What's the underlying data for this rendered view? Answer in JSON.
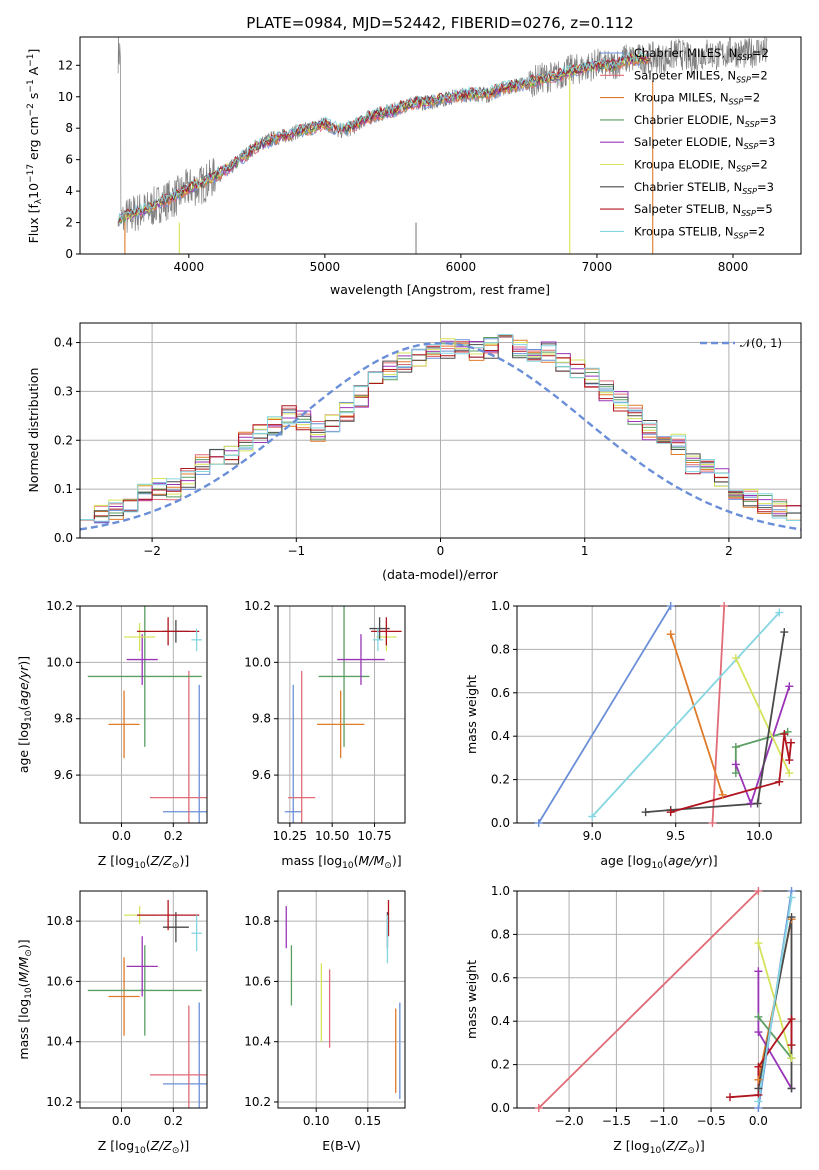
{
  "title": "PLATE=0984, MJD=52442, FIBERID=0276, z=0.112",
  "legend": [
    {
      "label": "Chabrier MILES, N",
      "sub": "SSP",
      "tail": "=2"
    },
    {
      "label": "Salpeter MILES, N",
      "sub": "SSP",
      "tail": "=2"
    },
    {
      "label": "Kroupa MILES, N",
      "sub": "SSP",
      "tail": "=2"
    },
    {
      "label": "Chabrier ELODIE, N",
      "sub": "SSP",
      "tail": "=3"
    },
    {
      "label": "Salpeter ELODIE, N",
      "sub": "SSP",
      "tail": "=3"
    },
    {
      "label": "Kroupa ELODIE, N",
      "sub": "SSP",
      "tail": "=2"
    },
    {
      "label": "Chabrier STELIB, N",
      "sub": "SSP",
      "tail": "=3"
    },
    {
      "label": "Salpeter STELIB, N",
      "sub": "SSP",
      "tail": "=5"
    },
    {
      "label": "Kroupa STELIB, N",
      "sub": "SSP",
      "tail": "=2"
    }
  ],
  "colors": [
    "#6a8fd8",
    "#e06c77",
    "#e07b2a",
    "#5a9e62",
    "#9a35b8",
    "#d6e35a",
    "#4a4a4a",
    "#b0141e",
    "#86d6e2"
  ],
  "chart_data": [
    {
      "type": "line",
      "title": "PLATE=0984, MJD=52442, FIBERID=0276, z=0.112",
      "xlabel": "wavelength [Angstrom, rest frame]",
      "ylabel_parts": [
        "Flux [f",
        "λ",
        "10",
        "−17",
        " erg cm",
        "−2",
        " s",
        "−1",
        " A",
        "−1",
        "]"
      ],
      "xlim": [
        3200,
        8500
      ],
      "ylim": [
        0,
        13.8
      ],
      "xticks": [
        4000,
        5000,
        6000,
        7000,
        8000
      ],
      "yticks": [
        0,
        2,
        4,
        6,
        8,
        10,
        12
      ],
      "grid": false,
      "legend_position": "right",
      "data_gray": [
        [
          3500,
          2.1
        ],
        [
          3600,
          2.6
        ],
        [
          3700,
          2.8
        ],
        [
          3800,
          3.3
        ],
        [
          3900,
          3.6
        ],
        [
          4000,
          4.2
        ],
        [
          4100,
          4.4
        ],
        [
          4200,
          5.0
        ],
        [
          4300,
          5.4
        ],
        [
          4400,
          6.2
        ],
        [
          4500,
          6.9
        ],
        [
          4600,
          7.3
        ],
        [
          4700,
          7.5
        ],
        [
          4800,
          7.8
        ],
        [
          4900,
          8.0
        ],
        [
          5000,
          8.3
        ],
        [
          5100,
          7.8
        ],
        [
          5200,
          8.0
        ],
        [
          5300,
          8.6
        ],
        [
          5400,
          8.9
        ],
        [
          5500,
          9.1
        ],
        [
          5600,
          9.5
        ],
        [
          5700,
          9.6
        ],
        [
          5800,
          9.7
        ],
        [
          5900,
          9.9
        ],
        [
          6000,
          10.1
        ],
        [
          6100,
          10.2
        ],
        [
          6200,
          10.1
        ],
        [
          6300,
          10.5
        ],
        [
          6400,
          10.7
        ],
        [
          6500,
          10.9
        ],
        [
          6600,
          11.2
        ],
        [
          6700,
          11.3
        ],
        [
          6800,
          11.7
        ],
        [
          6900,
          11.8
        ],
        [
          7000,
          12.1
        ],
        [
          7100,
          11.9
        ],
        [
          7200,
          12.4
        ],
        [
          7300,
          12.4
        ],
        [
          7400,
          12.5
        ],
        [
          7500,
          12.4
        ],
        [
          7600,
          12.8
        ],
        [
          7700,
          12.3
        ],
        [
          7800,
          12.8
        ],
        [
          7900,
          12.6
        ],
        [
          8000,
          12.9
        ],
        [
          8100,
          12.7
        ],
        [
          8200,
          13.0
        ],
        [
          8250,
          12.8
        ]
      ],
      "model": [
        [
          3480,
          2.2
        ],
        [
          3600,
          2.6
        ],
        [
          3700,
          2.9
        ],
        [
          3800,
          3.3
        ],
        [
          3900,
          3.7
        ],
        [
          4000,
          4.2
        ],
        [
          4100,
          4.5
        ],
        [
          4200,
          5.0
        ],
        [
          4300,
          5.5
        ],
        [
          4400,
          6.2
        ],
        [
          4500,
          6.8
        ],
        [
          4600,
          7.2
        ],
        [
          4700,
          7.5
        ],
        [
          4800,
          7.8
        ],
        [
          4900,
          8.0
        ],
        [
          5000,
          8.3
        ],
        [
          5100,
          7.9
        ],
        [
          5200,
          8.1
        ],
        [
          5300,
          8.6
        ],
        [
          5400,
          8.9
        ],
        [
          5500,
          9.1
        ],
        [
          5600,
          9.5
        ],
        [
          5700,
          9.6
        ],
        [
          5800,
          9.8
        ],
        [
          5900,
          9.9
        ],
        [
          6000,
          10.1
        ],
        [
          6100,
          10.2
        ],
        [
          6200,
          10.2
        ],
        [
          6300,
          10.5
        ],
        [
          6400,
          10.7
        ],
        [
          6500,
          10.9
        ],
        [
          6600,
          11.1
        ],
        [
          6700,
          11.3
        ],
        [
          6800,
          11.6
        ],
        [
          6900,
          11.8
        ],
        [
          7000,
          12.0
        ],
        [
          7100,
          11.9
        ],
        [
          7200,
          12.3
        ],
        [
          7300,
          12.4
        ],
        [
          7400,
          12.5
        ]
      ]
    },
    {
      "type": "histogram",
      "xlabel": "(data-model)/error",
      "ylabel": "Normed distribution",
      "xlim": [
        -2.5,
        2.5
      ],
      "ylim": [
        0,
        0.44
      ],
      "xticks": [
        -2,
        -1,
        0,
        1,
        2
      ],
      "yticks": [
        0.0,
        0.1,
        0.2,
        0.3,
        0.4
      ],
      "grid": true,
      "legend": "𝒩(0, 1)",
      "legend_position": "top-right",
      "bin_width": 0.1,
      "base": [
        0.06,
        0.05,
        0.06,
        0.07,
        0.09,
        0.1,
        0.1,
        0.12,
        0.15,
        0.16,
        0.17,
        0.2,
        0.21,
        0.23,
        0.25,
        0.24,
        0.22,
        0.23,
        0.26,
        0.29,
        0.32,
        0.34,
        0.36,
        0.37,
        0.38,
        0.39,
        0.39,
        0.38,
        0.39,
        0.4,
        0.39,
        0.38,
        0.38,
        0.36,
        0.35,
        0.33,
        0.3,
        0.28,
        0.25,
        0.22,
        0.2,
        0.19,
        0.15,
        0.14,
        0.12,
        0.09,
        0.08,
        0.07,
        0.06,
        0.05
      ]
    },
    {
      "type": "errorbar",
      "xlabel": "Z [log10(Z/Z⊙)]",
      "ylabel": "age [log10(age/yr)]",
      "xlim": [
        -0.16,
        0.33
      ],
      "ylim": [
        9.43,
        10.2
      ],
      "xticks": [
        0.0,
        0.2
      ],
      "yticks": [
        9.6,
        9.8,
        10.0,
        10.2
      ],
      "points": [
        {
          "x": 0.3,
          "xerr": 0.14,
          "y": 9.47,
          "yerr": 0.45
        },
        {
          "x": 0.26,
          "xerr": 0.15,
          "y": 9.52,
          "yerr": 0.45
        },
        {
          "x": 0.01,
          "xerr": 0.06,
          "y": 9.78,
          "yerr": 0.12
        },
        {
          "x": 0.09,
          "xerr": 0.22,
          "y": 9.95,
          "yerr": 0.25
        },
        {
          "x": 0.08,
          "xerr": 0.06,
          "y": 10.01,
          "yerr": 0.09
        },
        {
          "x": 0.07,
          "xerr": 0.06,
          "y": 10.09,
          "yerr": 0.05
        },
        {
          "x": 0.21,
          "xerr": 0.05,
          "y": 10.11,
          "yerr": 0.04
        },
        {
          "x": 0.18,
          "xerr": 0.12,
          "y": 10.11,
          "yerr": 0.05
        },
        {
          "x": 0.29,
          "xerr": 0.02,
          "y": 10.08,
          "yerr": 0.04
        }
      ]
    },
    {
      "type": "errorbar",
      "xlabel": "mass [log10(M/M⊙)]",
      "xlim": [
        10.18,
        10.93
      ],
      "ylim": [
        9.43,
        10.2
      ],
      "xticks": [
        10.25,
        10.5,
        10.75
      ],
      "yticks": [
        9.6,
        9.8,
        10.0,
        10.2
      ],
      "points": [
        {
          "x": 10.27,
          "xerr": 0.05,
          "y": 9.47,
          "yerr": 0.45
        },
        {
          "x": 10.32,
          "xerr": 0.08,
          "y": 9.52,
          "yerr": 0.45
        },
        {
          "x": 10.55,
          "xerr": 0.14,
          "y": 9.78,
          "yerr": 0.12
        },
        {
          "x": 10.57,
          "xerr": 0.15,
          "y": 9.95,
          "yerr": 0.25
        },
        {
          "x": 10.67,
          "xerr": 0.14,
          "y": 10.01,
          "yerr": 0.09
        },
        {
          "x": 10.82,
          "xerr": 0.06,
          "y": 10.09,
          "yerr": 0.05
        },
        {
          "x": 10.78,
          "xerr": 0.06,
          "y": 10.12,
          "yerr": 0.04
        },
        {
          "x": 10.82,
          "xerr": 0.09,
          "y": 10.11,
          "yerr": 0.05
        },
        {
          "x": 10.77,
          "xerr": 0.03,
          "y": 10.08,
          "yerr": 0.04
        }
      ]
    },
    {
      "type": "line",
      "xlabel": "age [log10(age/yr)]",
      "ylabel": "mass weight",
      "xlim": [
        8.55,
        10.25
      ],
      "ylim": [
        0,
        1
      ],
      "xticks": [
        9.0,
        9.5,
        10.0
      ],
      "yticks": [
        0.0,
        0.2,
        0.4,
        0.6,
        0.8,
        1.0
      ],
      "grid": true,
      "series": [
        {
          "points": [
            [
              8.68,
              0.0
            ],
            [
              9.47,
              1.0
            ]
          ]
        },
        {
          "points": [
            [
              9.72,
              0.0
            ],
            [
              9.79,
              1.0
            ]
          ]
        },
        {
          "points": [
            [
              9.47,
              0.87
            ],
            [
              9.78,
              0.13
            ]
          ]
        },
        {
          "points": [
            [
              9.86,
              0.23
            ],
            [
              9.86,
              0.35
            ],
            [
              10.17,
              0.42
            ]
          ]
        },
        {
          "points": [
            [
              9.86,
              0.27
            ],
            [
              9.95,
              0.09
            ],
            [
              10.18,
              0.63
            ]
          ]
        },
        {
          "points": [
            [
              9.86,
              0.76
            ],
            [
              10.18,
              0.23
            ]
          ]
        },
        {
          "points": [
            [
              9.32,
              0.05
            ],
            [
              9.47,
              0.06
            ],
            [
              9.99,
              0.09
            ],
            [
              10.15,
              0.88
            ]
          ]
        },
        {
          "points": [
            [
              9.47,
              0.05
            ],
            [
              10.12,
              0.19
            ],
            [
              10.15,
              0.41
            ],
            [
              10.18,
              0.29
            ],
            [
              10.19,
              0.37
            ]
          ]
        },
        {
          "points": [
            [
              9.0,
              0.03
            ],
            [
              10.12,
              0.97
            ]
          ]
        }
      ]
    },
    {
      "type": "errorbar",
      "xlabel": "Z [log10(Z/Z⊙)]",
      "ylabel": "mass [log10(M/M⊙)]",
      "xlim": [
        -0.16,
        0.33
      ],
      "ylim": [
        10.18,
        10.9
      ],
      "xticks": [
        0.0,
        0.2
      ],
      "yticks": [
        10.2,
        10.4,
        10.6,
        10.8
      ],
      "points": [
        {
          "x": 0.3,
          "xerr": 0.14,
          "y": 10.26,
          "yerr": 0.27
        },
        {
          "x": 0.26,
          "xerr": 0.15,
          "y": 10.29,
          "yerr": 0.23
        },
        {
          "x": 0.01,
          "xerr": 0.06,
          "y": 10.55,
          "yerr": 0.13
        },
        {
          "x": 0.09,
          "xerr": 0.22,
          "y": 10.57,
          "yerr": 0.15
        },
        {
          "x": 0.08,
          "xerr": 0.06,
          "y": 10.65,
          "yerr": 0.1
        },
        {
          "x": 0.07,
          "xerr": 0.06,
          "y": 10.82,
          "yerr": 0.03
        },
        {
          "x": 0.21,
          "xerr": 0.05,
          "y": 10.78,
          "yerr": 0.05
        },
        {
          "x": 0.18,
          "xerr": 0.12,
          "y": 10.82,
          "yerr": 0.05
        },
        {
          "x": 0.29,
          "xerr": 0.02,
          "y": 10.76,
          "yerr": 0.06
        }
      ]
    },
    {
      "type": "errorbar",
      "xlabel": "E(B-V)",
      "xlim": [
        0.063,
        0.186
      ],
      "ylim": [
        10.18,
        10.9
      ],
      "xticks": [
        0.1,
        0.15
      ],
      "yticks": [
        10.2,
        10.4,
        10.6,
        10.8
      ],
      "points": [
        {
          "x": 0.181,
          "y": 10.37,
          "yerr": 0.16
        },
        {
          "x": 0.113,
          "y": 10.51,
          "yerr": 0.13
        },
        {
          "x": 0.177,
          "y": 10.37,
          "yerr": 0.14
        },
        {
          "x": 0.076,
          "y": 10.62,
          "yerr": 0.1
        },
        {
          "x": 0.071,
          "y": 10.78,
          "yerr": 0.07
        },
        {
          "x": 0.105,
          "y": 10.53,
          "yerr": 0.13
        },
        {
          "x": 0.169,
          "y": 10.77,
          "yerr": 0.06
        },
        {
          "x": 0.17,
          "y": 10.81,
          "yerr": 0.06
        },
        {
          "x": 0.169,
          "y": 10.74,
          "yerr": 0.08
        }
      ]
    },
    {
      "type": "line",
      "xlabel": "Z [log10(Z/Z⊙)]",
      "ylabel": "mass weight",
      "xlim": [
        -2.55,
        0.45
      ],
      "ylim": [
        0,
        1
      ],
      "xticks": [
        -2.0,
        -1.5,
        -1.0,
        -0.5,
        0.0
      ],
      "yticks": [
        0.0,
        0.2,
        0.4,
        0.6,
        0.8,
        1.0
      ],
      "grid": true,
      "series": [
        {
          "points": [
            [
              0.0,
              0.0
            ],
            [
              0.35,
              1.0
            ]
          ]
        },
        {
          "points": [
            [
              -2.32,
              0.0
            ],
            [
              0.0,
              1.0
            ]
          ]
        },
        {
          "points": [
            [
              0.0,
              0.13
            ],
            [
              0.35,
              0.87
            ]
          ]
        },
        {
          "points": [
            [
              0.0,
              0.42
            ],
            [
              0.35,
              0.23
            ]
          ]
        },
        {
          "points": [
            [
              0.0,
              0.63
            ],
            [
              0.0,
              0.35
            ],
            [
              0.35,
              0.09
            ]
          ]
        },
        {
          "points": [
            [
              0.0,
              0.76
            ],
            [
              0.35,
              0.23
            ]
          ]
        },
        {
          "points": [
            [
              0.0,
              0.09
            ],
            [
              0.35,
              0.88
            ],
            [
              0.35,
              0.09
            ]
          ]
        },
        {
          "points": [
            [
              -0.3,
              0.05
            ],
            [
              0.0,
              0.06
            ],
            [
              0.0,
              0.19
            ],
            [
              0.35,
              0.41
            ],
            [
              0.35,
              0.29
            ]
          ]
        },
        {
          "points": [
            [
              0.0,
              0.03
            ],
            [
              0.35,
              0.97
            ]
          ]
        }
      ]
    }
  ]
}
